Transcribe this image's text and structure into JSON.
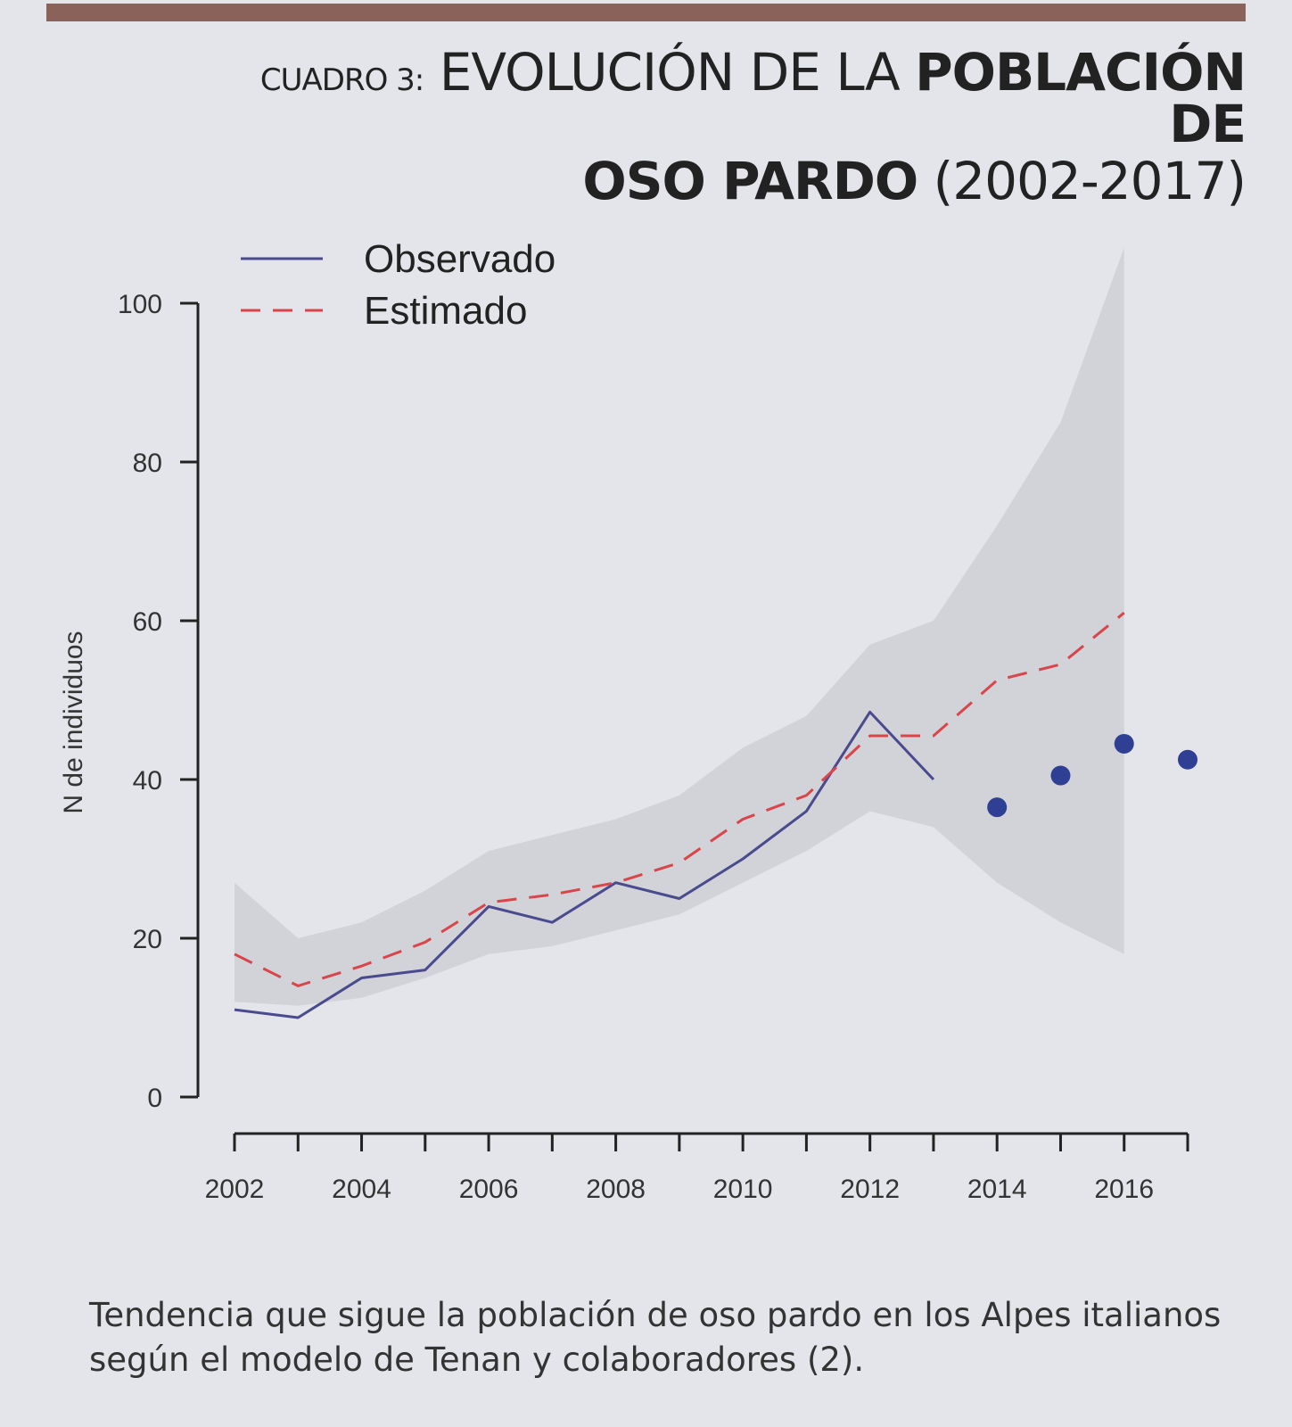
{
  "header": {
    "prefix": "CUADRO 3:",
    "line1_regular": "EVOLUCIÓN DE LA",
    "line1_bold": "POBLACIÓN DE",
    "line2_bold": "OSO PARDO",
    "line2_regular": "(2002-2017)"
  },
  "caption": {
    "line1": "Tendencia que sigue la población de oso pardo en los Alpes italianos",
    "line2": "según el modelo de Tenan y colaboradores (2)."
  },
  "colors": {
    "observed": "#4a4a8e",
    "estimated": "#d9454a",
    "band": "#cfd0d6",
    "points": "#2f3f94",
    "axis": "#222222",
    "header_bar": "#8a625a"
  },
  "chart_data": {
    "type": "line",
    "xlabel": "",
    "ylabel": "N de individuos",
    "xlim": [
      2002,
      2017
    ],
    "ylim": [
      0,
      100
    ],
    "x_ticks": [
      2002,
      2003,
      2004,
      2005,
      2006,
      2007,
      2008,
      2009,
      2010,
      2011,
      2012,
      2013,
      2014,
      2015,
      2016,
      2017
    ],
    "x_tick_labels": [
      "2002",
      "2004",
      "2006",
      "2008",
      "2010",
      "2012",
      "2014",
      "2016"
    ],
    "x_tick_label_years": [
      2002,
      2004,
      2006,
      2008,
      2010,
      2012,
      2014,
      2016
    ],
    "y_ticks": [
      0,
      20,
      40,
      60,
      80,
      100
    ],
    "y_tick_labels": [
      "0",
      "20",
      "40",
      "60",
      "80",
      "100"
    ],
    "legend": {
      "placement": "top-left",
      "entries": [
        {
          "label": "Observado",
          "style": "solid"
        },
        {
          "label": "Estimado",
          "style": "dashed"
        }
      ]
    },
    "series": [
      {
        "name": "Observado",
        "style": "solid",
        "x": [
          2002,
          2003,
          2004,
          2005,
          2006,
          2007,
          2008,
          2009,
          2010,
          2011,
          2012,
          2013
        ],
        "values": [
          11,
          10,
          15,
          16,
          24,
          22,
          27,
          25,
          30,
          36,
          48.5,
          40
        ]
      },
      {
        "name": "Estimado",
        "style": "dashed",
        "x": [
          2002,
          2003,
          2004,
          2005,
          2006,
          2007,
          2008,
          2009,
          2010,
          2011,
          2012,
          2013,
          2014,
          2015,
          2016
        ],
        "values": [
          18,
          14,
          16.5,
          19.5,
          24.5,
          25.5,
          27,
          29.5,
          35,
          38,
          45.5,
          45.5,
          52.5,
          54.5,
          61
        ]
      }
    ],
    "confidence_band": {
      "x": [
        2002,
        2003,
        2004,
        2005,
        2006,
        2007,
        2008,
        2009,
        2010,
        2011,
        2012,
        2013,
        2014,
        2015,
        2016
      ],
      "lower": [
        12,
        11.5,
        12.5,
        15,
        18,
        19,
        21,
        23,
        27,
        31,
        36,
        34,
        27,
        22,
        18
      ],
      "upper": [
        27,
        20,
        22,
        26,
        31,
        33,
        35,
        38,
        44,
        48,
        57,
        60,
        72,
        85,
        107
      ]
    },
    "points": {
      "x": [
        2014,
        2015,
        2016,
        2017
      ],
      "values": [
        36.5,
        40.5,
        44.5,
        42.5
      ]
    }
  }
}
